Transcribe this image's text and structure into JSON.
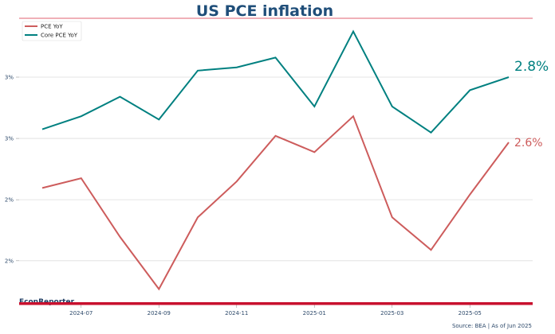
{
  "chart_data": {
    "type": "line",
    "title": "US PCE inflation",
    "xlabel": "",
    "ylabel": "",
    "x": [
      "2024-06",
      "2024-07",
      "2024-08",
      "2024-09",
      "2024-10",
      "2024-11",
      "2024-12",
      "2025-01",
      "2025-02",
      "2025-03",
      "2025-04",
      "2025-05",
      "2025-06"
    ],
    "x_ticks": [
      "2024-07",
      "2024-09",
      "2024-11",
      "2025-01",
      "2025-03",
      "2025-05"
    ],
    "y_ticks": [
      2.8,
      2.612,
      2.424,
      2.237
    ],
    "y_tick_labels": [
      "3%",
      "3%",
      "2%",
      "2%"
    ],
    "ylim": [
      2.12,
      2.97
    ],
    "grid": true,
    "legend_position": "top-left",
    "series": [
      {
        "name": "PCE YoY",
        "color": "#cd5c5c",
        "values": [
          2.46,
          2.49,
          2.31,
          2.15,
          2.37,
          2.48,
          2.62,
          2.57,
          2.68,
          2.37,
          2.27,
          2.44,
          2.6
        ],
        "end_label": "2.6%"
      },
      {
        "name": "Core PCE YoY",
        "color": "#008080",
        "values": [
          2.64,
          2.68,
          2.74,
          2.67,
          2.82,
          2.83,
          2.86,
          2.71,
          2.94,
          2.71,
          2.63,
          2.76,
          2.8
        ],
        "end_label": "2.8%"
      }
    ]
  },
  "branding": {
    "name": "EconReporter",
    "accent_color": "#c8102e",
    "title_rule_color": "#e06070"
  },
  "footer": {
    "source": "Source: BEA | As of Jun 2025"
  }
}
